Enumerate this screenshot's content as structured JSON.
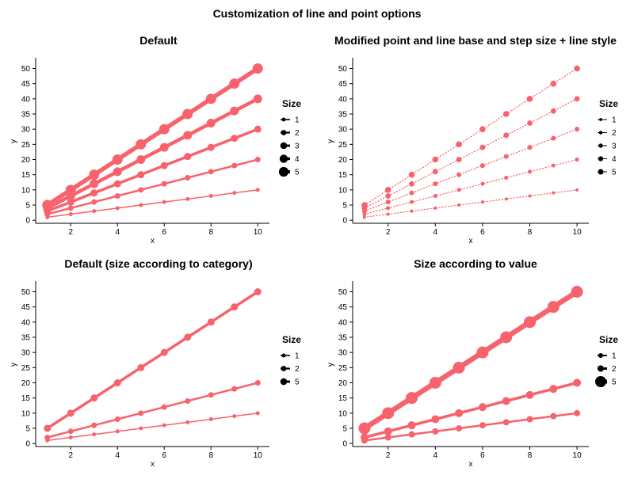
{
  "figure": {
    "title": "Customization of line and point options",
    "accent_color": "#f8626c"
  },
  "chart_data": [
    {
      "type": "line",
      "title": "Default",
      "xlabel": "x",
      "ylabel": "y",
      "xlim": [
        0.5,
        10.5
      ],
      "ylim": [
        -1,
        53
      ],
      "xticks": [
        2,
        4,
        6,
        8,
        10
      ],
      "yticks": [
        0,
        5,
        10,
        15,
        20,
        25,
        30,
        35,
        40,
        45,
        50
      ],
      "line_style": "solid",
      "x": [
        1,
        2,
        3,
        4,
        5,
        6,
        7,
        8,
        9,
        10
      ],
      "series": [
        {
          "size": 1,
          "values": [
            1,
            2,
            3,
            4,
            5,
            6,
            7,
            8,
            9,
            10
          ]
        },
        {
          "size": 2,
          "values": [
            2,
            4,
            6,
            8,
            10,
            12,
            14,
            16,
            18,
            20
          ]
        },
        {
          "size": 3,
          "values": [
            3,
            6,
            9,
            12,
            15,
            18,
            21,
            24,
            27,
            30
          ]
        },
        {
          "size": 4,
          "values": [
            4,
            8,
            12,
            16,
            20,
            24,
            28,
            32,
            36,
            40
          ]
        },
        {
          "size": 5,
          "values": [
            5,
            10,
            15,
            20,
            25,
            30,
            35,
            40,
            45,
            50
          ]
        }
      ],
      "legend": {
        "title": "Size",
        "position": "right",
        "entries": [
          "1",
          "2",
          "3",
          "4",
          "5"
        ],
        "sizes": [
          1,
          2,
          3,
          4,
          5
        ]
      }
    },
    {
      "type": "line",
      "title": "Modified point and line base and step size + line style",
      "xlabel": "x",
      "ylabel": "y",
      "xlim": [
        0.5,
        10.5
      ],
      "ylim": [
        -1,
        53
      ],
      "xticks": [
        2,
        4,
        6,
        8,
        10
      ],
      "yticks": [
        0,
        5,
        10,
        15,
        20,
        25,
        30,
        35,
        40,
        45,
        50
      ],
      "line_style": "dotted",
      "x": [
        1,
        2,
        3,
        4,
        5,
        6,
        7,
        8,
        9,
        10
      ],
      "series": [
        {
          "size": 1,
          "values": [
            1,
            2,
            3,
            4,
            5,
            6,
            7,
            8,
            9,
            10
          ]
        },
        {
          "size": 2,
          "values": [
            2,
            4,
            6,
            8,
            10,
            12,
            14,
            16,
            18,
            20
          ]
        },
        {
          "size": 3,
          "values": [
            3,
            6,
            9,
            12,
            15,
            18,
            21,
            24,
            27,
            30
          ]
        },
        {
          "size": 4,
          "values": [
            4,
            8,
            12,
            16,
            20,
            24,
            28,
            32,
            36,
            40
          ]
        },
        {
          "size": 5,
          "values": [
            5,
            10,
            15,
            20,
            25,
            30,
            35,
            40,
            45,
            50
          ]
        }
      ],
      "legend": {
        "title": "Size",
        "position": "right",
        "entries": [
          "1",
          "2",
          "3",
          "4",
          "5"
        ],
        "sizes": [
          1,
          2,
          3,
          4,
          5
        ]
      }
    },
    {
      "type": "line",
      "title": "Default (size according to category)",
      "xlabel": "x",
      "ylabel": "y",
      "xlim": [
        0.5,
        10.5
      ],
      "ylim": [
        -1,
        53
      ],
      "xticks": [
        2,
        4,
        6,
        8,
        10
      ],
      "yticks": [
        0,
        5,
        10,
        15,
        20,
        25,
        30,
        35,
        40,
        45,
        50
      ],
      "line_style": "solid",
      "x": [
        1,
        2,
        3,
        4,
        5,
        6,
        7,
        8,
        9,
        10
      ],
      "series": [
        {
          "size": 1,
          "values": [
            1,
            2,
            3,
            4,
            5,
            6,
            7,
            8,
            9,
            10
          ]
        },
        {
          "size": 2,
          "values": [
            2,
            4,
            6,
            8,
            10,
            12,
            14,
            16,
            18,
            20
          ]
        },
        {
          "size": 5,
          "values": [
            5,
            10,
            15,
            20,
            25,
            30,
            35,
            40,
            45,
            50
          ]
        }
      ],
      "legend": {
        "title": "Size",
        "position": "right",
        "entries": [
          "1",
          "2",
          "5"
        ],
        "sizes": [
          1,
          2,
          3
        ]
      }
    },
    {
      "type": "line",
      "title": "Size according to value",
      "xlabel": "x",
      "ylabel": "y",
      "xlim": [
        0.5,
        10.5
      ],
      "ylim": [
        -1,
        53
      ],
      "xticks": [
        2,
        4,
        6,
        8,
        10
      ],
      "yticks": [
        0,
        5,
        10,
        15,
        20,
        25,
        30,
        35,
        40,
        45,
        50
      ],
      "line_style": "solid",
      "x": [
        1,
        2,
        3,
        4,
        5,
        6,
        7,
        8,
        9,
        10
      ],
      "series": [
        {
          "size": 1,
          "values": [
            1,
            2,
            3,
            4,
            5,
            6,
            7,
            8,
            9,
            10
          ]
        },
        {
          "size": 2,
          "values": [
            2,
            4,
            6,
            8,
            10,
            12,
            14,
            16,
            18,
            20
          ]
        },
        {
          "size": 5,
          "values": [
            5,
            10,
            15,
            20,
            25,
            30,
            35,
            40,
            45,
            50
          ]
        }
      ],
      "legend": {
        "title": "Size",
        "position": "right",
        "entries": [
          "1",
          "2",
          "5"
        ],
        "sizes": [
          1,
          2,
          5
        ]
      }
    }
  ]
}
